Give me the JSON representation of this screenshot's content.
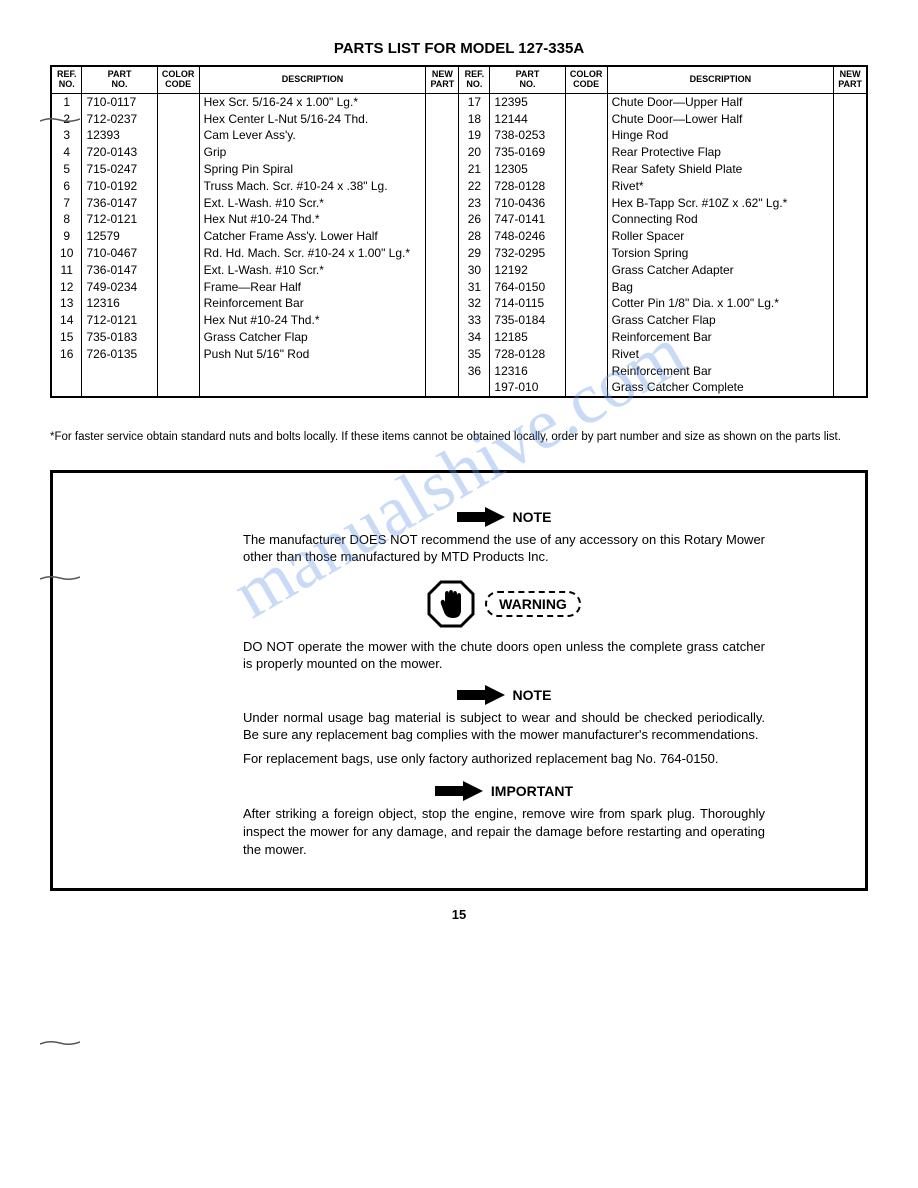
{
  "page_title": "PARTS LIST FOR MODEL 127-335A",
  "headers": {
    "ref_no": "REF.\nNO.",
    "part_no": "PART\nNO.",
    "color_code": "COLOR\nCODE",
    "description": "DESCRIPTION",
    "new_part": "NEW\nPART"
  },
  "left_rows": [
    {
      "ref": "1",
      "part": "710-0117",
      "desc": "Hex Scr. 5/16-24 x 1.00\" Lg.*"
    },
    {
      "ref": "2",
      "part": "712-0237",
      "desc": "Hex Center L-Nut 5/16-24 Thd."
    },
    {
      "ref": "3",
      "part": "12393",
      "desc": "Cam Lever Ass'y."
    },
    {
      "ref": "4",
      "part": "720-0143",
      "desc": "Grip"
    },
    {
      "ref": "5",
      "part": "715-0247",
      "desc": "Spring Pin Spiral"
    },
    {
      "ref": "6",
      "part": "710-0192",
      "desc": "Truss Mach. Scr. #10-24 x .38\" Lg."
    },
    {
      "ref": "7",
      "part": "736-0147",
      "desc": "Ext. L-Wash. #10 Scr.*"
    },
    {
      "ref": "8",
      "part": "712-0121",
      "desc": "Hex Nut #10-24 Thd.*"
    },
    {
      "ref": "9",
      "part": "12579",
      "desc": "Catcher Frame Ass'y. Lower Half"
    },
    {
      "ref": "10",
      "part": "710-0467",
      "desc": "Rd. Hd. Mach. Scr. #10-24 x 1.00\" Lg.*"
    },
    {
      "ref": "11",
      "part": "736-0147",
      "desc": "Ext. L-Wash. #10 Scr.*"
    },
    {
      "ref": "12",
      "part": "749-0234",
      "desc": "Frame—Rear Half"
    },
    {
      "ref": "13",
      "part": "12316",
      "desc": "Reinforcement Bar"
    },
    {
      "ref": "14",
      "part": "712-0121",
      "desc": "Hex Nut #10-24 Thd.*"
    },
    {
      "ref": "15",
      "part": "735-0183",
      "desc": "Grass Catcher Flap"
    },
    {
      "ref": "16",
      "part": "726-0135",
      "desc": "Push Nut 5/16\" Rod"
    }
  ],
  "right_rows": [
    {
      "ref": "17",
      "part": "12395",
      "desc": "Chute Door—Upper Half"
    },
    {
      "ref": "18",
      "part": "12144",
      "desc": "Chute Door—Lower Half"
    },
    {
      "ref": "19",
      "part": "738-0253",
      "desc": "Hinge Rod"
    },
    {
      "ref": "20",
      "part": "735-0169",
      "desc": "Rear Protective Flap"
    },
    {
      "ref": "21",
      "part": "12305",
      "desc": "Rear Safety Shield Plate"
    },
    {
      "ref": "22",
      "part": "728-0128",
      "desc": "Rivet*"
    },
    {
      "ref": "23",
      "part": "710-0436",
      "desc": "Hex B-Tapp Scr. #10Z x .62\" Lg.*"
    },
    {
      "ref": "26",
      "part": "747-0141",
      "desc": "Connecting Rod"
    },
    {
      "ref": "28",
      "part": "748-0246",
      "desc": "Roller Spacer"
    },
    {
      "ref": "29",
      "part": "732-0295",
      "desc": "Torsion Spring"
    },
    {
      "ref": "30",
      "part": "12192",
      "desc": "Grass Catcher Adapter"
    },
    {
      "ref": "31",
      "part": "764-0150",
      "desc": "Bag"
    },
    {
      "ref": "32",
      "part": "714-0115",
      "desc": "Cotter Pin 1/8\" Dia. x 1.00\" Lg.*"
    },
    {
      "ref": "33",
      "part": "735-0184",
      "desc": "Grass Catcher Flap"
    },
    {
      "ref": "34",
      "part": "12185",
      "desc": "Reinforcement Bar"
    },
    {
      "ref": "35",
      "part": "728-0128",
      "desc": "Rivet"
    },
    {
      "ref": "36",
      "part": "12316",
      "desc": "Reinforcement Bar"
    },
    {
      "ref": "",
      "part": "197-010",
      "desc": "Grass Catcher Complete"
    }
  ],
  "footnote": "*For faster service obtain standard nuts and bolts locally. If these items cannot be obtained locally, order by part number and size as shown on the parts list.",
  "notes": {
    "note1_label": "NOTE",
    "note1_text": "The manufacturer DOES NOT recommend the use of any accessory on this Rotary Mower other than those manufactured by MTD Products Inc.",
    "warning_label": "WARNING",
    "warning_text": "DO NOT operate the mower with the chute doors open unless the complete grass catcher is properly mounted on the mower.",
    "note2_label": "NOTE",
    "note2_text": "Under normal usage bag material is subject to wear and should be checked periodically. Be sure any replacement bag complies with the mower manufacturer's recommendations.",
    "note2_text2": "For replacement bags, use only factory authorized replacement bag No. 764-0150.",
    "important_label": "IMPORTANT",
    "important_text": "After striking a foreign object, stop the engine, remove wire from spark plug. Thoroughly inspect the mower for any damage, and repair the damage before restarting and operating the mower."
  },
  "page_number": "15",
  "watermark": "manualshive.com"
}
